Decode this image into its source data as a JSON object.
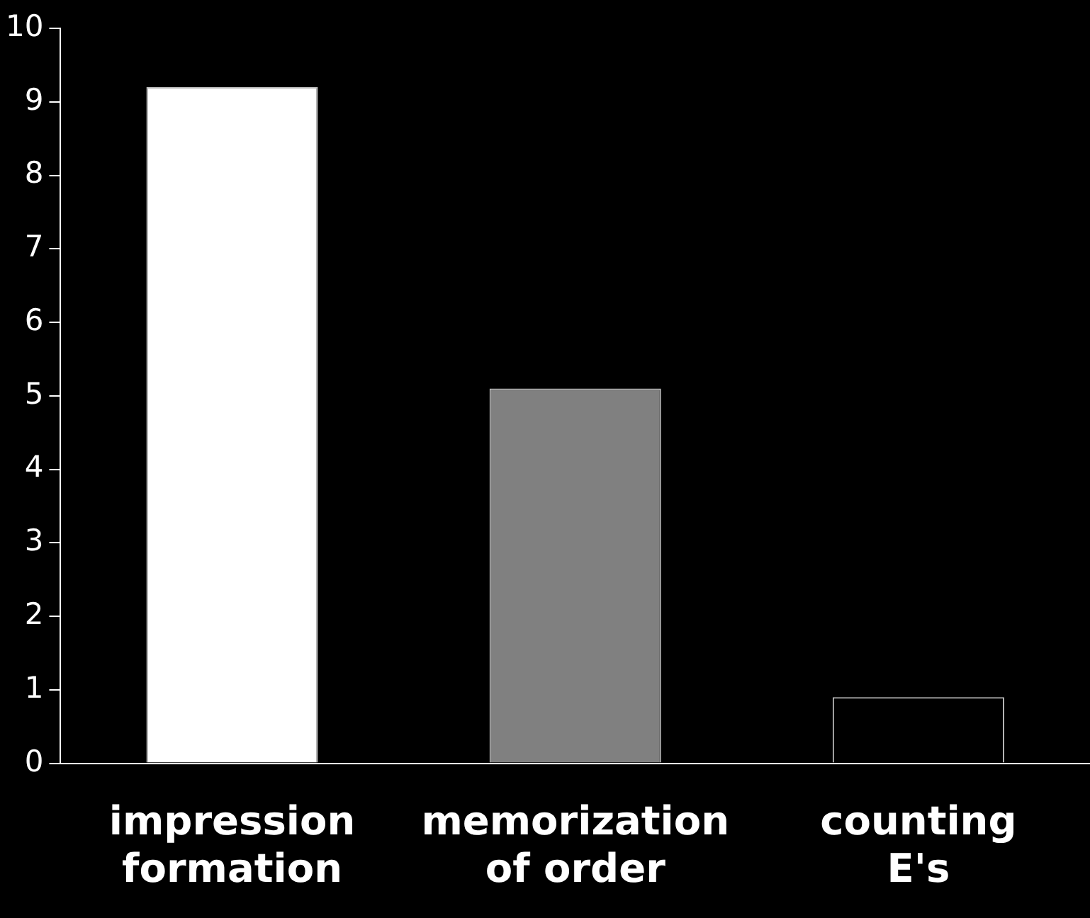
{
  "chart_data": {
    "type": "bar",
    "categories": [
      "impression formation",
      "memorization of order",
      "counting E's"
    ],
    "values": [
      9.2,
      5.1,
      0.9
    ],
    "colors": [
      "#ffffff",
      "#808080",
      "#000000"
    ],
    "ylim": [
      0,
      10
    ],
    "yticks": [
      0,
      1,
      2,
      3,
      4,
      5,
      6,
      7,
      8,
      9,
      10
    ],
    "grid": false,
    "legend": false
  }
}
